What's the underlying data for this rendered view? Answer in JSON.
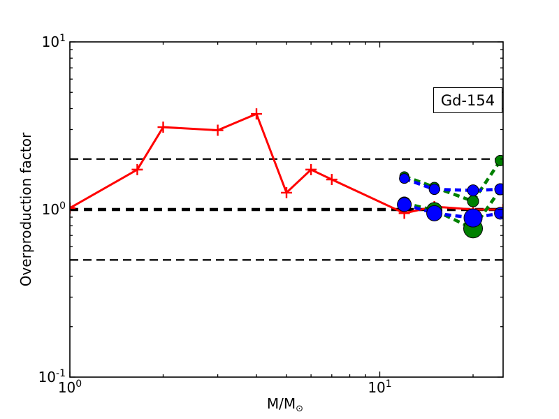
{
  "figure": {
    "ylabel": "Overproduction factor",
    "xlabel_main": "M/M",
    "xlabel_sub": "⊙",
    "annotation": "Gd-154",
    "background": "#ffffff"
  },
  "chart_data": {
    "type": "line",
    "title": "",
    "xlabel": "M/M⊙",
    "ylabel": "Overproduction factor",
    "x_scale": "log",
    "y_scale": "log",
    "xlim": [
      1,
      25
    ],
    "ylim": [
      0.1,
      10
    ],
    "grid": false,
    "legend_position": "none",
    "annotation": {
      "text": "Gd-154",
      "location": "upper-right"
    },
    "x_ticks": {
      "major": [
        1,
        10
      ],
      "minor": [
        2,
        3,
        4,
        5,
        6,
        7,
        8,
        9,
        20
      ],
      "labels": [
        {
          "base": "10",
          "exp": "0"
        },
        {
          "base": "10",
          "exp": "1"
        }
      ]
    },
    "y_ticks": {
      "major": [
        0.1,
        1,
        10
      ],
      "minor": [
        0.2,
        0.3,
        0.4,
        0.5,
        0.6,
        0.7,
        0.8,
        0.9,
        2,
        3,
        4,
        5,
        6,
        7,
        8,
        9
      ],
      "labels": [
        {
          "base": "10",
          "exp": "-1"
        },
        {
          "base": "10",
          "exp": "0"
        },
        {
          "base": "10",
          "exp": "1"
        }
      ]
    },
    "reference_lines": [
      {
        "y": 2.0,
        "color": "#000000",
        "style": "dashed",
        "width": 2.2,
        "dash": "12 7"
      },
      {
        "y": 0.5,
        "color": "#000000",
        "style": "dashed",
        "width": 2.2,
        "dash": "12 7"
      },
      {
        "y": 1.0,
        "color": "#000000",
        "style": "dashed",
        "width": 4.6,
        "dash": "12 8"
      }
    ],
    "series": [
      {
        "name": "red-solid-plus",
        "color": "#ff0000",
        "line": "solid",
        "line_width": 3,
        "marker": "plus",
        "marker_half_px": 8,
        "x": [
          1,
          1.65,
          2,
          3,
          4,
          5,
          6,
          7,
          12,
          15,
          20,
          25
        ],
        "y": [
          1.02,
          1.73,
          3.1,
          2.97,
          3.72,
          1.26,
          1.73,
          1.51,
          0.95,
          1.04,
          1.0,
          1.0
        ]
      },
      {
        "name": "green-dashed-upper",
        "color": "#008000",
        "line": "dashed",
        "line_width": 4.6,
        "marker": "circle",
        "marker_radius_px": [
          6.5,
          7,
          8,
          7.5
        ],
        "x": [
          12,
          15,
          20,
          24.5
        ],
        "y": [
          1.58,
          1.36,
          1.12,
          1.96
        ]
      },
      {
        "name": "green-dashed-lower",
        "color": "#008000",
        "line": "dashed",
        "line_width": 4.6,
        "marker": "circle",
        "marker_radius_px": [
          9,
          11,
          13.5,
          8
        ],
        "x": [
          12,
          15,
          20,
          24.5
        ],
        "y": [
          1.09,
          0.99,
          0.77,
          1.32
        ]
      },
      {
        "name": "blue-dashed-upper",
        "color": "#0000ff",
        "line": "dashed",
        "line_width": 4.6,
        "marker": "circle",
        "marker_radius_px": [
          7,
          7.5,
          8,
          8
        ],
        "x": [
          12,
          15,
          20,
          24.5
        ],
        "y": [
          1.53,
          1.32,
          1.3,
          1.32
        ]
      },
      {
        "name": "blue-dashed-lower",
        "color": "#0000ff",
        "line": "dashed",
        "line_width": 4.6,
        "marker": "circle",
        "marker_radius_px": [
          10,
          11,
          13,
          8.5
        ],
        "x": [
          12,
          15,
          20,
          24.5
        ],
        "y": [
          1.07,
          0.95,
          0.89,
          0.95
        ]
      }
    ]
  }
}
